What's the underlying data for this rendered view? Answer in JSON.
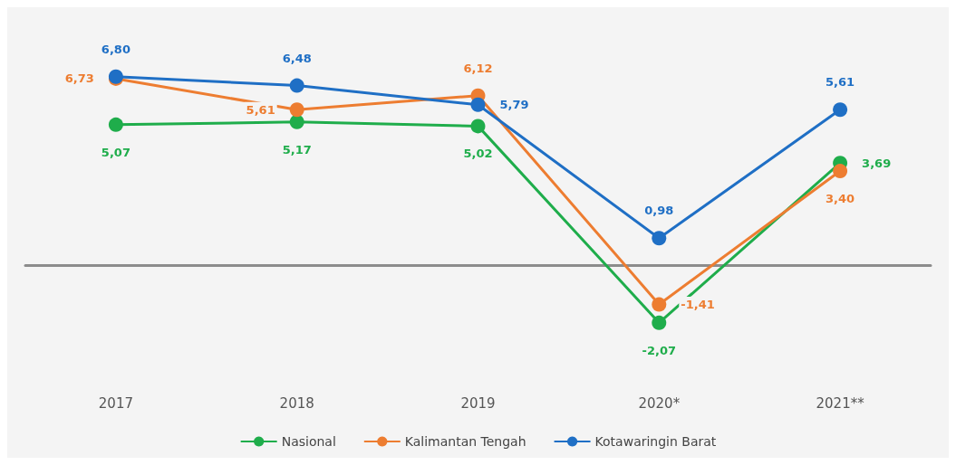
{
  "chart_data": {
    "type": "line",
    "categories": [
      "2017",
      "2018",
      "2019",
      "2020*",
      "2021**"
    ],
    "series": [
      {
        "name": "Nasional",
        "color": "#1fad4b",
        "values": [
          5.07,
          5.17,
          5.02,
          -2.07,
          3.69
        ],
        "value_labels": [
          "5,07",
          "5,17",
          "5,02",
          "-2,07",
          "3,69"
        ]
      },
      {
        "name": "Kalimantan Tengah",
        "color": "#ed7d31",
        "values": [
          6.73,
          5.61,
          6.12,
          -1.41,
          3.4
        ],
        "value_labels": [
          "6,73",
          "5,61",
          "6,12",
          "-1,41",
          "3,40"
        ]
      },
      {
        "name": "Kotawaringin Barat",
        "color": "#1f6fc5",
        "values": [
          6.8,
          6.48,
          5.79,
          0.98,
          5.61
        ],
        "value_labels": [
          "6,80",
          "6,48",
          "5,79",
          "0,98",
          "5,61"
        ]
      }
    ],
    "marker": "circle",
    "line_style": "solid",
    "legend": "bottom",
    "grid": false
  }
}
